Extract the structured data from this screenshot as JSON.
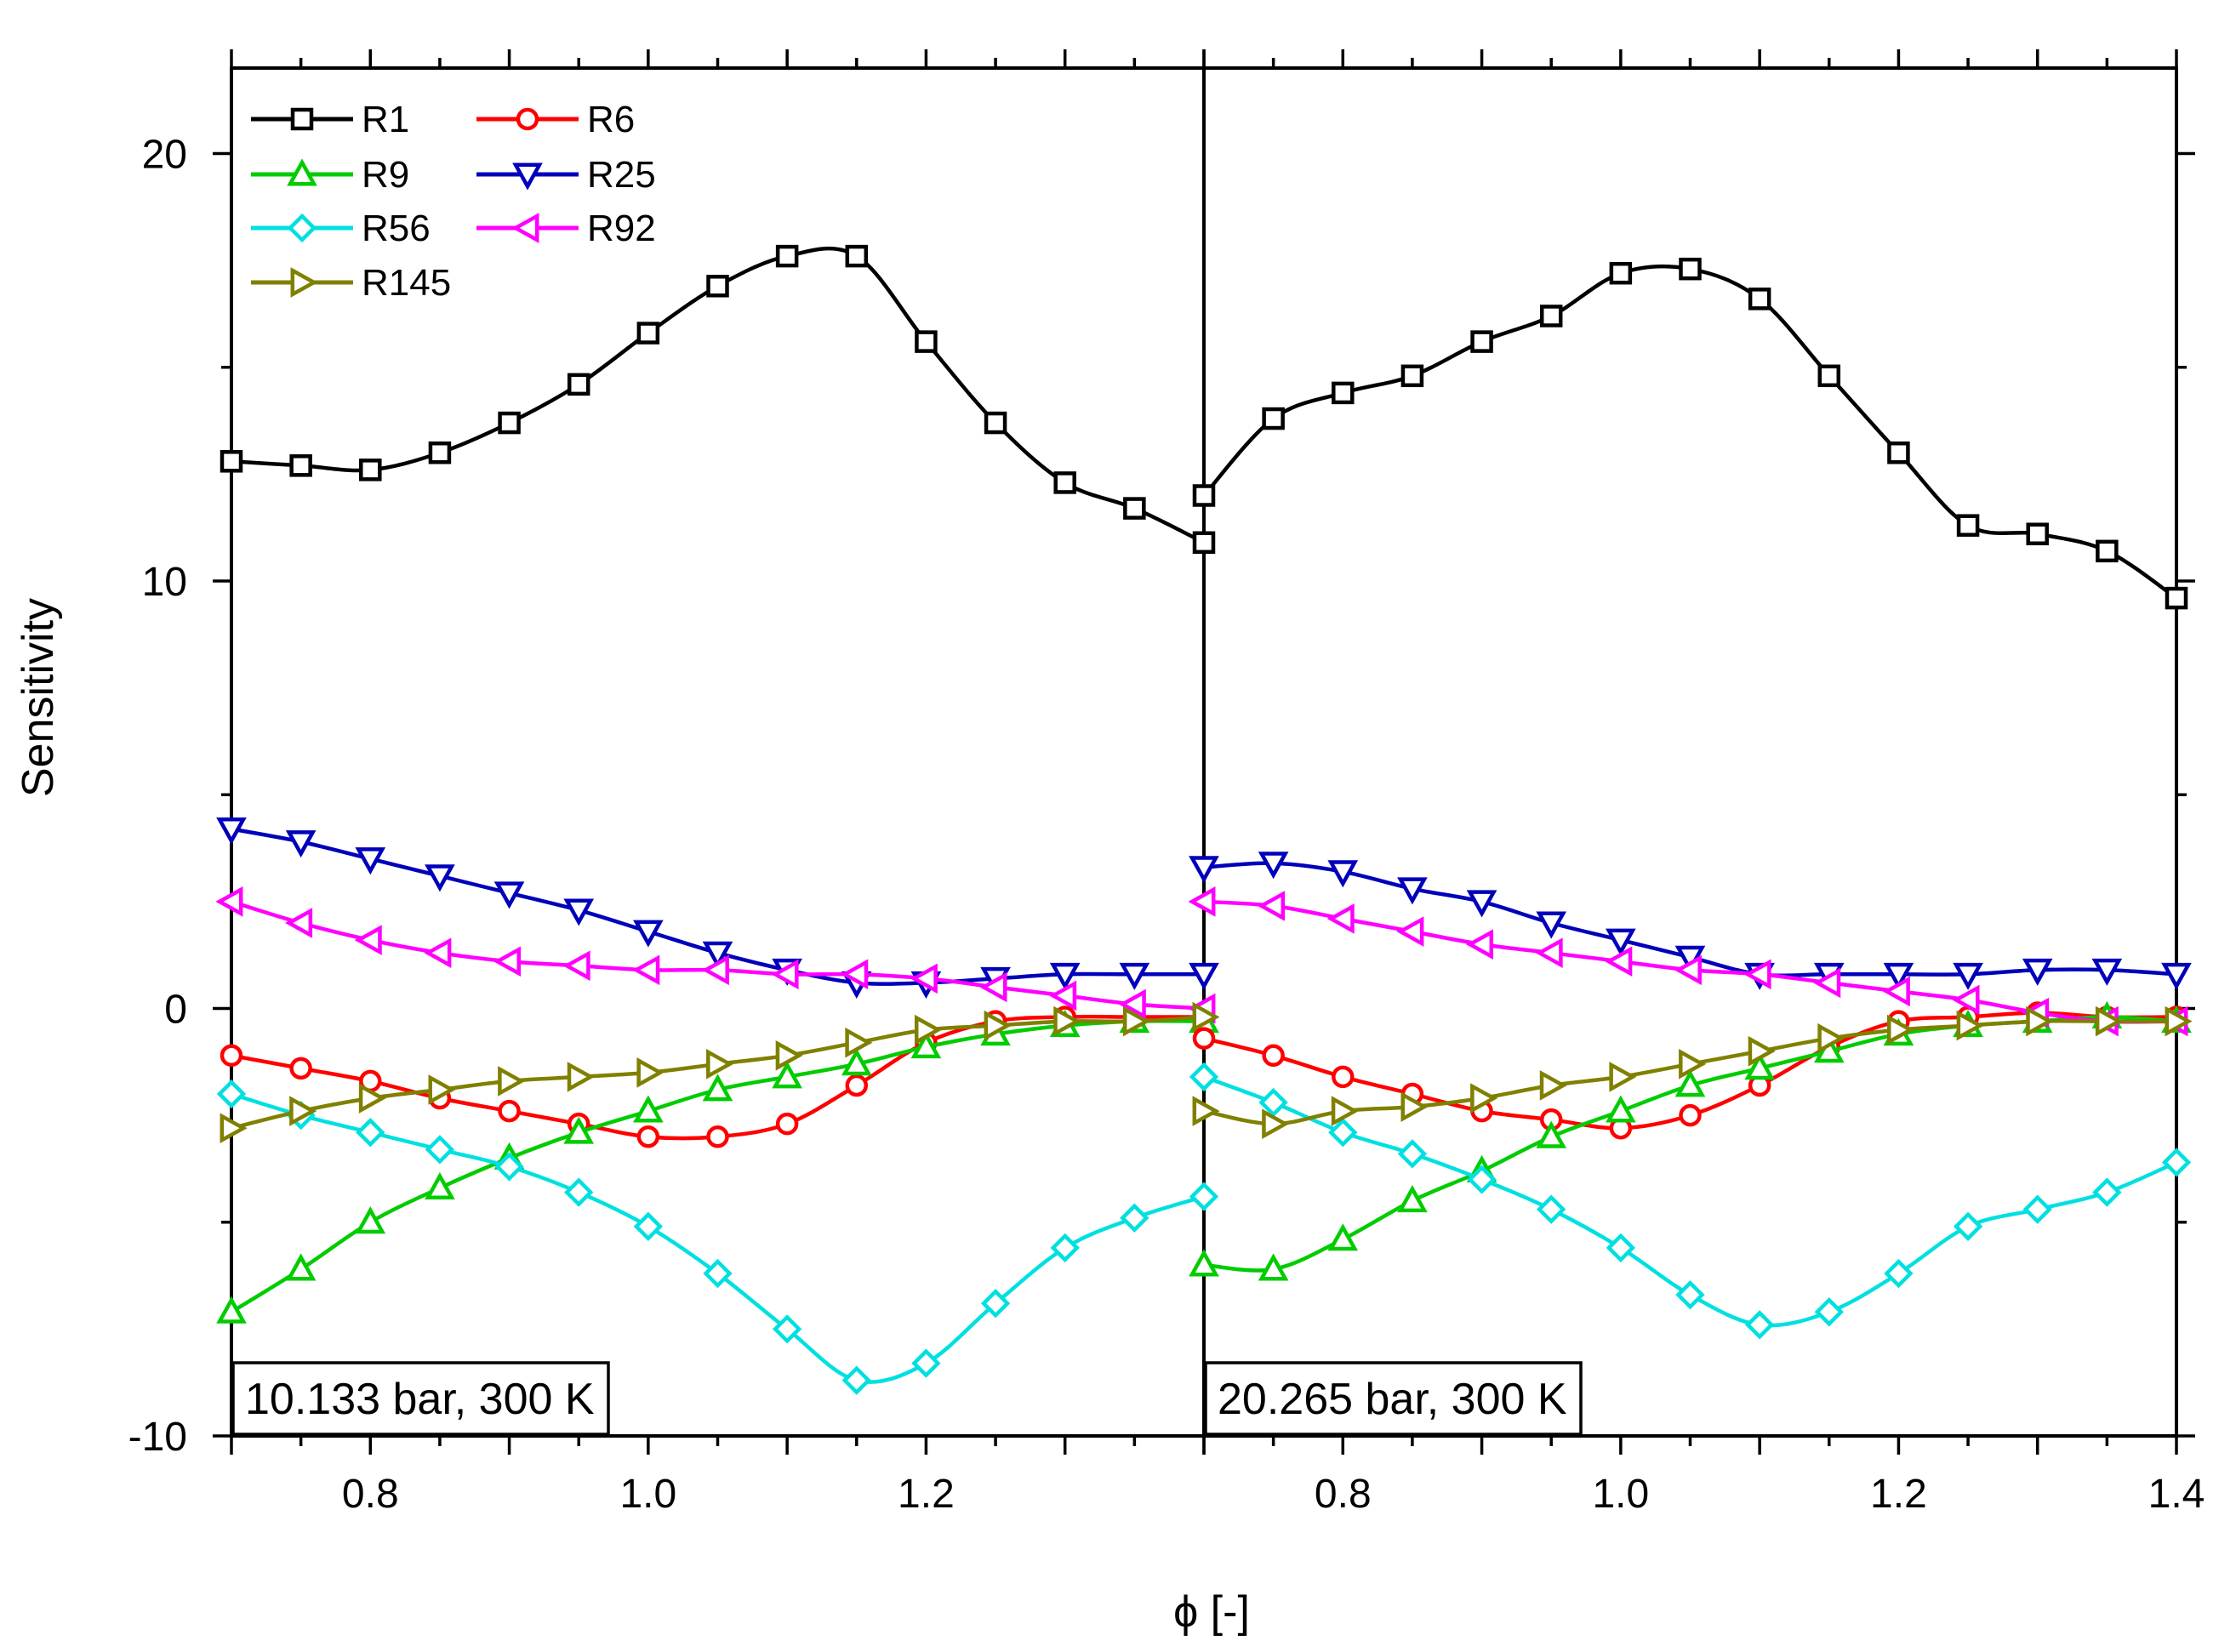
{
  "chart_data": {
    "type": "line",
    "ylabel": "Sensitivity",
    "xlabel": "ϕ [-]",
    "ylim": [
      -10,
      22
    ],
    "yticks": [
      -10,
      0,
      10,
      20
    ],
    "series_styles": [
      {
        "name": "R1",
        "color": "#000000",
        "marker": "square"
      },
      {
        "name": "R6",
        "color": "#ff0000",
        "marker": "circle"
      },
      {
        "name": "R9",
        "color": "#00cc00",
        "marker": "triangle-up"
      },
      {
        "name": "R25",
        "color": "#0000bb",
        "marker": "triangle-down"
      },
      {
        "name": "R56",
        "color": "#00e0e0",
        "marker": "diamond"
      },
      {
        "name": "R92",
        "color": "#ff00ff",
        "marker": "triangle-left"
      },
      {
        "name": "R145",
        "color": "#808000",
        "marker": "triangle-right"
      }
    ],
    "panels": [
      {
        "label": "10.133 bar, 300 K",
        "xlim": [
          0.7,
          1.4
        ],
        "xtick_labels": [
          {
            "value": 0.8,
            "text": "0.8"
          },
          {
            "value": 1.0,
            "text": "1.0"
          },
          {
            "value": 1.2,
            "text": "1.2"
          }
        ],
        "x": [
          0.7,
          0.75,
          0.8,
          0.85,
          0.9,
          0.95,
          1.0,
          1.05,
          1.1,
          1.15,
          1.2,
          1.25,
          1.3,
          1.35,
          1.4
        ],
        "series": [
          {
            "name": "R1",
            "values": [
              12.8,
              12.7,
              12.6,
              13.0,
              13.7,
              14.6,
              15.8,
              16.9,
              17.6,
              17.6,
              15.6,
              13.7,
              12.3,
              11.7,
              10.9
            ]
          },
          {
            "name": "R6",
            "values": [
              -1.1,
              -1.4,
              -1.7,
              -2.1,
              -2.4,
              -2.7,
              -3.0,
              -3.0,
              -2.7,
              -1.8,
              -0.8,
              -0.3,
              -0.2,
              -0.2,
              -0.2
            ]
          },
          {
            "name": "R9",
            "values": [
              -7.1,
              -6.1,
              -5.0,
              -4.2,
              -3.5,
              -2.9,
              -2.4,
              -1.9,
              -1.6,
              -1.3,
              -0.9,
              -0.6,
              -0.4,
              -0.3,
              -0.3
            ]
          },
          {
            "name": "R25",
            "values": [
              4.2,
              3.9,
              3.5,
              3.1,
              2.7,
              2.3,
              1.8,
              1.3,
              0.9,
              0.6,
              0.6,
              0.7,
              0.8,
              0.8,
              0.8
            ]
          },
          {
            "name": "R56",
            "values": [
              -2.0,
              -2.5,
              -2.9,
              -3.3,
              -3.7,
              -4.3,
              -5.1,
              -6.2,
              -7.5,
              -8.7,
              -8.3,
              -6.9,
              -5.6,
              -4.9,
              -4.4
            ]
          },
          {
            "name": "R92",
            "values": [
              2.5,
              2.0,
              1.6,
              1.3,
              1.1,
              1.0,
              0.9,
              0.9,
              0.8,
              0.8,
              0.7,
              0.5,
              0.3,
              0.1,
              0.0
            ]
          },
          {
            "name": "R145",
            "values": [
              -2.8,
              -2.4,
              -2.1,
              -1.9,
              -1.7,
              -1.6,
              -1.5,
              -1.3,
              -1.1,
              -0.8,
              -0.5,
              -0.4,
              -0.3,
              -0.3,
              -0.2
            ]
          }
        ]
      },
      {
        "label": "20.265 bar, 300 K",
        "xlim": [
          0.7,
          1.4
        ],
        "xtick_labels": [
          {
            "value": 0.8,
            "text": "0.8"
          },
          {
            "value": 1.0,
            "text": "1.0"
          },
          {
            "value": 1.2,
            "text": "1.2"
          },
          {
            "value": 1.4,
            "text": "1.4"
          }
        ],
        "x": [
          0.7,
          0.75,
          0.8,
          0.85,
          0.9,
          0.95,
          1.0,
          1.05,
          1.1,
          1.15,
          1.2,
          1.25,
          1.3,
          1.35,
          1.4
        ],
        "series": [
          {
            "name": "R1",
            "values": [
              12.0,
              13.8,
              14.4,
              14.8,
              15.6,
              16.2,
              17.2,
              17.3,
              16.6,
              14.8,
              13.0,
              11.3,
              11.1,
              10.7,
              9.6
            ]
          },
          {
            "name": "R6",
            "values": [
              -0.7,
              -1.1,
              -1.6,
              -2.0,
              -2.4,
              -2.6,
              -2.8,
              -2.5,
              -1.8,
              -0.9,
              -0.3,
              -0.2,
              -0.1,
              -0.2,
              -0.2
            ]
          },
          {
            "name": "R9",
            "values": [
              -6.0,
              -6.1,
              -5.4,
              -4.5,
              -3.8,
              -3.0,
              -2.4,
              -1.8,
              -1.4,
              -1.0,
              -0.6,
              -0.4,
              -0.3,
              -0.2,
              -0.3
            ]
          },
          {
            "name": "R25",
            "values": [
              3.3,
              3.4,
              3.2,
              2.8,
              2.5,
              2.0,
              1.6,
              1.2,
              0.8,
              0.8,
              0.8,
              0.8,
              0.9,
              0.9,
              0.8
            ]
          },
          {
            "name": "R56",
            "values": [
              -1.6,
              -2.2,
              -2.9,
              -3.4,
              -4.0,
              -4.7,
              -5.6,
              -6.7,
              -7.4,
              -7.1,
              -6.2,
              -5.1,
              -4.7,
              -4.3,
              -3.6
            ]
          },
          {
            "name": "R92",
            "values": [
              2.5,
              2.4,
              2.1,
              1.8,
              1.5,
              1.3,
              1.1,
              0.9,
              0.8,
              0.6,
              0.4,
              0.2,
              -0.1,
              -0.3,
              -0.3
            ]
          },
          {
            "name": "R145",
            "values": [
              -2.4,
              -2.7,
              -2.4,
              -2.3,
              -2.1,
              -1.8,
              -1.6,
              -1.3,
              -1.0,
              -0.7,
              -0.5,
              -0.4,
              -0.3,
              -0.3,
              -0.3
            ]
          }
        ]
      }
    ]
  }
}
